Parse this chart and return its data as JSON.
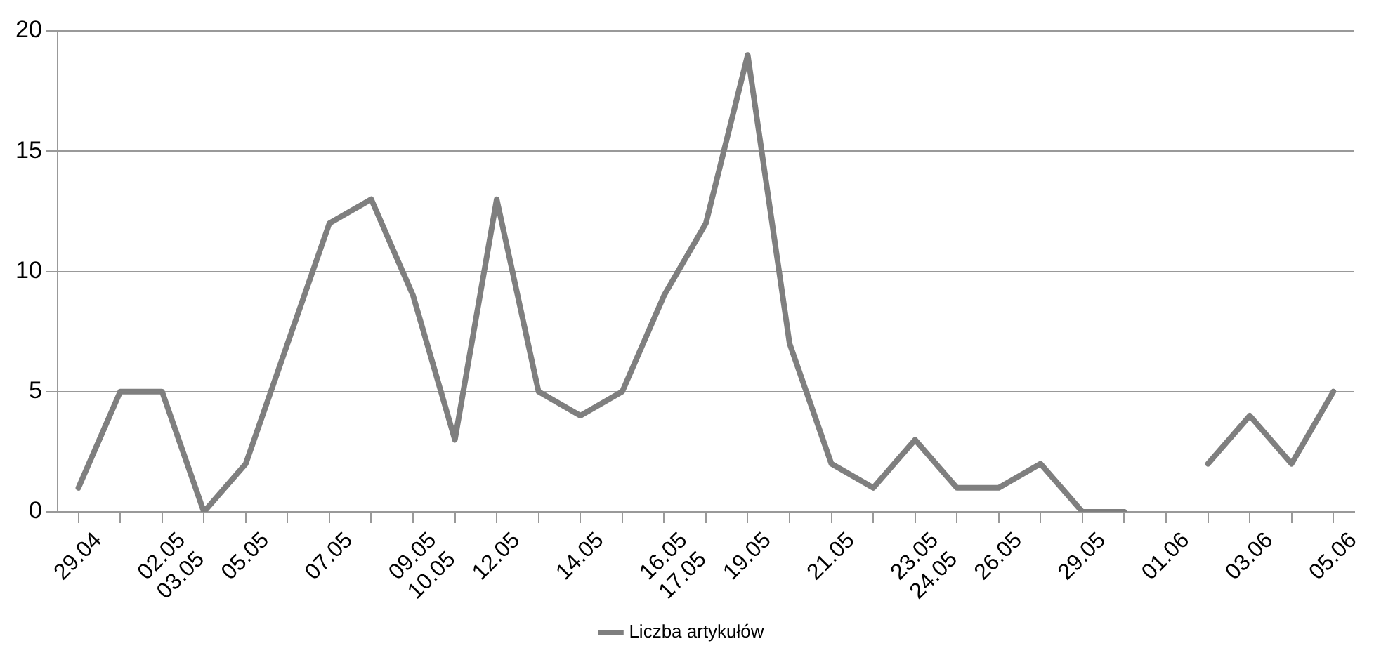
{
  "chart_data": {
    "type": "line",
    "categories": [
      "29.04",
      null,
      "02.05 03.05",
      null,
      "05.05",
      null,
      "07.05",
      null,
      "09.05 10.05",
      null,
      "12.05",
      null,
      "14.05",
      null,
      "16.05 17.05",
      null,
      "19.05",
      null,
      "21.05",
      null,
      "23.05 24.05",
      null,
      "26.05",
      null,
      "29.05",
      null,
      "01.06",
      null,
      "03.06",
      null,
      "05.06"
    ],
    "series": [
      {
        "name": "Liczba artykułów",
        "color": "#7f7f7f",
        "values": [
          1,
          5,
          5,
          0,
          2,
          7,
          12,
          13,
          9,
          3,
          13,
          5,
          4,
          5,
          9,
          12,
          19,
          7,
          2,
          1,
          3,
          1,
          1,
          2,
          0,
          0,
          null,
          2,
          4,
          2,
          5
        ]
      }
    ],
    "ylim": [
      0,
      20
    ],
    "yticks": [
      0,
      5,
      10,
      15,
      20
    ],
    "grid": "y",
    "legend": "bottom",
    "marker": "none",
    "line_style": "solid"
  }
}
